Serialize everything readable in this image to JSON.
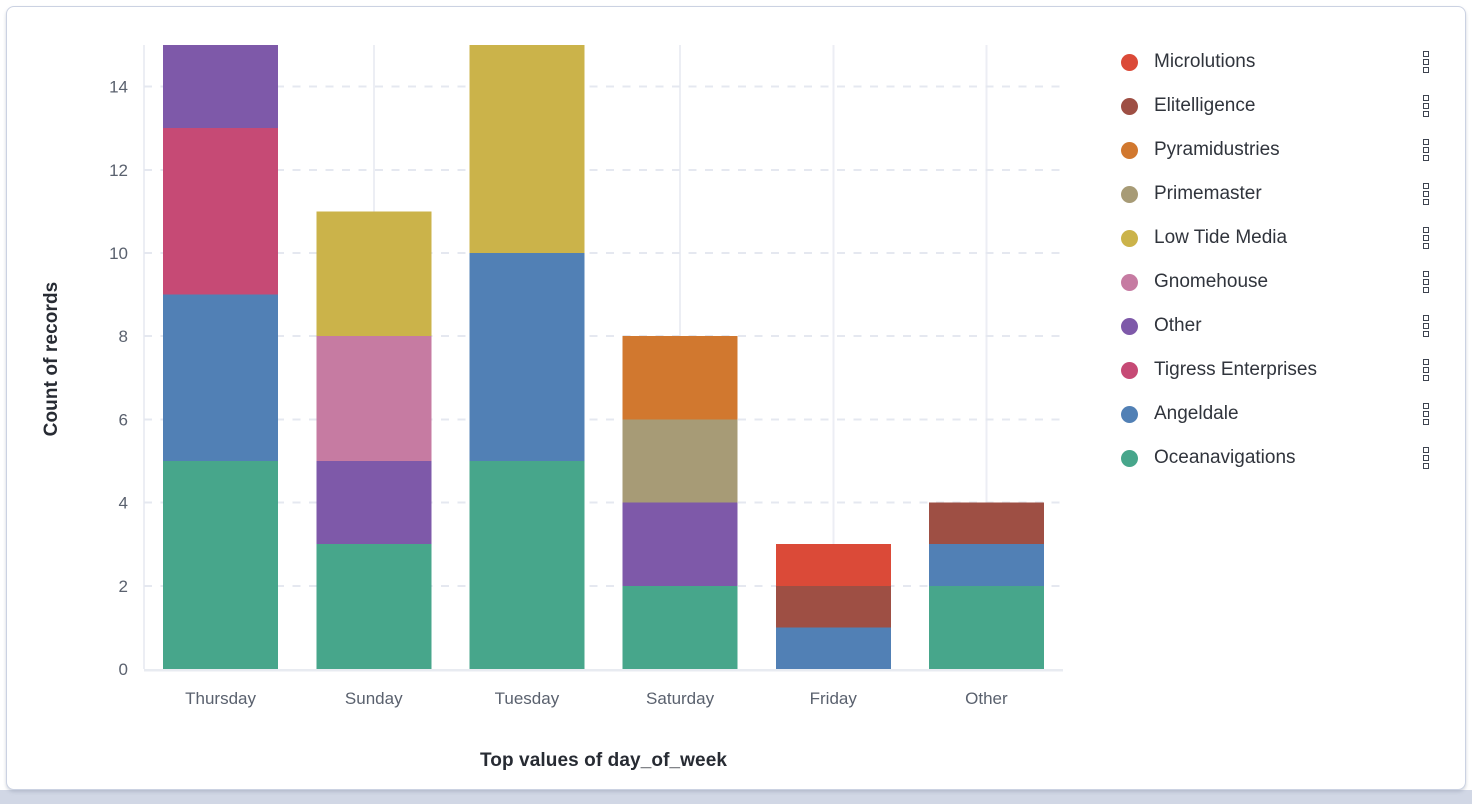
{
  "page": {
    "background_strip_color": "#D1D7E5"
  },
  "panel": {
    "background_color": "#FFFFFF",
    "border_color": "#CBD2E2"
  },
  "chart_data": {
    "type": "bar",
    "stacked": true,
    "title": "",
    "xlabel": "Top values of day_of_week",
    "ylabel": "Count of records",
    "categories": [
      "Thursday",
      "Sunday",
      "Tuesday",
      "Saturday",
      "Friday",
      "Other"
    ],
    "y_ticks": [
      0,
      2,
      4,
      6,
      8,
      10,
      12,
      14
    ],
    "ylim": [
      0,
      15
    ],
    "grid": {
      "horizontal": "dashed",
      "vertical": "solid-at-category-centers"
    },
    "legend_position": "right",
    "series": [
      {
        "name": "Oceanavigations",
        "color": "#47A68B",
        "values": [
          5,
          3,
          5,
          2,
          0,
          2
        ]
      },
      {
        "name": "Angeldale",
        "color": "#5180B5",
        "values": [
          4,
          0,
          5,
          0,
          1,
          1
        ]
      },
      {
        "name": "Tigress Enterprises",
        "color": "#C64A75",
        "values": [
          4,
          0,
          0,
          0,
          0,
          0
        ]
      },
      {
        "name": "Other",
        "color": "#7E59A9",
        "values": [
          2,
          2,
          0,
          2,
          0,
          0
        ]
      },
      {
        "name": "Gnomehouse",
        "color": "#C67BA2",
        "values": [
          0,
          3,
          0,
          0,
          0,
          0
        ]
      },
      {
        "name": "Low Tide Media",
        "color": "#CBB34A",
        "values": [
          0,
          3,
          5,
          0,
          0,
          0
        ]
      },
      {
        "name": "Primemaster",
        "color": "#A79B76",
        "values": [
          0,
          0,
          0,
          2,
          0,
          0
        ]
      },
      {
        "name": "Pyramidustries",
        "color": "#D1782F",
        "values": [
          0,
          0,
          0,
          2,
          0,
          0
        ]
      },
      {
        "name": "Elitelligence",
        "color": "#9E4F44",
        "values": [
          0,
          0,
          0,
          0,
          1,
          1
        ]
      },
      {
        "name": "Microlutions",
        "color": "#DB4A38",
        "values": [
          0,
          0,
          0,
          0,
          1,
          0
        ]
      }
    ],
    "colors": {
      "vertical_gridline": "#ECEEF4",
      "horizontal_gridline": "#E5E8F0",
      "axis_line": "#E8EBF1",
      "tick_label": "#5A616E",
      "axis_title": "#272B33"
    }
  },
  "legend": {
    "action_icon": "boxes-vertical-icon",
    "items": [
      {
        "label": "Microlutions",
        "color": "#DB4A38"
      },
      {
        "label": "Elitelligence",
        "color": "#9E4F44"
      },
      {
        "label": "Pyramidustries",
        "color": "#D1782F"
      },
      {
        "label": "Primemaster",
        "color": "#A79B76"
      },
      {
        "label": "Low Tide Media",
        "color": "#CBB34A"
      },
      {
        "label": "Gnomehouse",
        "color": "#C67BA2"
      },
      {
        "label": "Other",
        "color": "#7E59A9"
      },
      {
        "label": "Tigress Enterprises",
        "color": "#C64A75"
      },
      {
        "label": "Angeldale",
        "color": "#5180B5"
      },
      {
        "label": "Oceanavigations",
        "color": "#47A68B"
      }
    ]
  }
}
